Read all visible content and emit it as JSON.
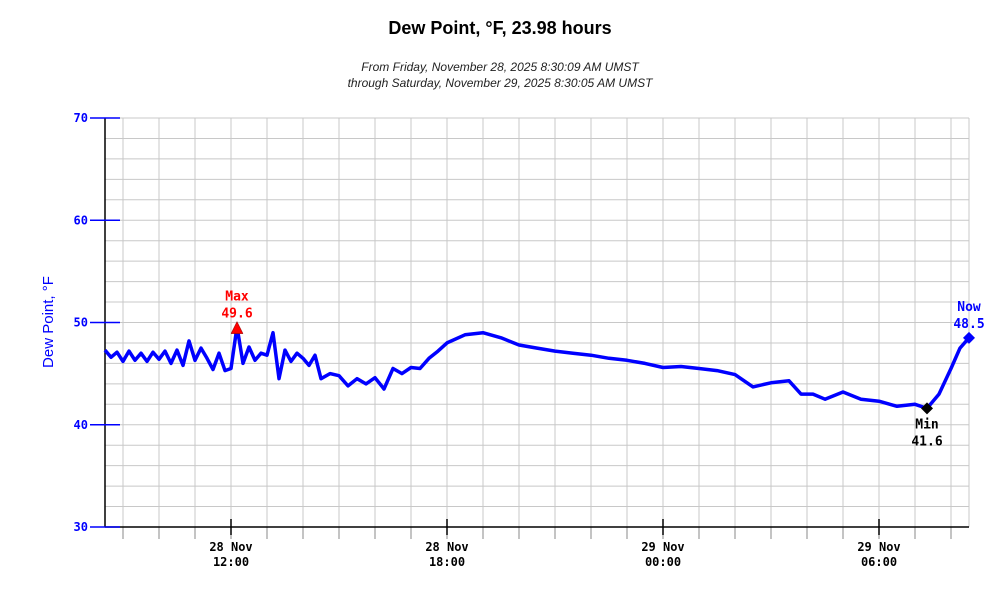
{
  "chart_data": {
    "type": "line",
    "title": "Dew Point, °F, 23.98 hours",
    "subtitle_line1": "From Friday, November 28, 2025 8:30:09 AM UMST",
    "subtitle_line2": "through Saturday, November 29, 2025 8:30:05 AM UMST",
    "ylabel": "Dew Point, °F",
    "xlabel": "",
    "ylim": [
      30,
      70
    ],
    "yticks": [
      "30",
      "40",
      "50",
      "60",
      "70"
    ],
    "xlim": [
      "2025-11-28 08:30",
      "2025-11-29 08:30"
    ],
    "xticks": [
      {
        "at": "2025-11-28 12:00",
        "line1": "28 Nov",
        "line2": "12:00"
      },
      {
        "at": "2025-11-28 18:00",
        "line1": "28 Nov",
        "line2": "18:00"
      },
      {
        "at": "2025-11-29 00:00",
        "line1": "29 Nov",
        "line2": "00:00"
      },
      {
        "at": "2025-11-29 06:00",
        "line1": "29 Nov",
        "line2": "06:00"
      }
    ],
    "grid": true,
    "line_color": "#0000ff",
    "series": [
      {
        "x": [
          "2025-11-28 08:30",
          "2025-11-28 08:40",
          "2025-11-28 08:50",
          "2025-11-28 09:00",
          "2025-11-28 09:10",
          "2025-11-28 09:20",
          "2025-11-28 09:30",
          "2025-11-28 09:40",
          "2025-11-28 09:50",
          "2025-11-28 10:00",
          "2025-11-28 10:10",
          "2025-11-28 10:20",
          "2025-11-28 10:30",
          "2025-11-28 10:40",
          "2025-11-28 10:50",
          "2025-11-28 11:00",
          "2025-11-28 11:10",
          "2025-11-28 11:20",
          "2025-11-28 11:30",
          "2025-11-28 11:40",
          "2025-11-28 11:50",
          "2025-11-28 12:00",
          "2025-11-28 12:10",
          "2025-11-28 12:20",
          "2025-11-28 12:30",
          "2025-11-28 12:40",
          "2025-11-28 12:50",
          "2025-11-28 13:00",
          "2025-11-28 13:10",
          "2025-11-28 13:20",
          "2025-11-28 13:30",
          "2025-11-28 13:40",
          "2025-11-28 13:50",
          "2025-11-28 14:00",
          "2025-11-28 14:10",
          "2025-11-28 14:20",
          "2025-11-28 14:30",
          "2025-11-28 14:45",
          "2025-11-28 15:00",
          "2025-11-28 15:15",
          "2025-11-28 15:30",
          "2025-11-28 15:45",
          "2025-11-28 16:00",
          "2025-11-28 16:15",
          "2025-11-28 16:30",
          "2025-11-28 16:45",
          "2025-11-28 17:00",
          "2025-11-28 17:15",
          "2025-11-28 17:30",
          "2025-11-28 17:45",
          "2025-11-28 18:00",
          "2025-11-28 18:30",
          "2025-11-28 19:00",
          "2025-11-28 19:30",
          "2025-11-28 20:00",
          "2025-11-28 20:30",
          "2025-11-28 21:00",
          "2025-11-28 21:30",
          "2025-11-28 22:00",
          "2025-11-28 22:30",
          "2025-11-28 23:00",
          "2025-11-28 23:30",
          "2025-11-29 00:00",
          "2025-11-29 00:30",
          "2025-11-29 01:00",
          "2025-11-29 01:30",
          "2025-11-29 02:00",
          "2025-11-29 02:30",
          "2025-11-29 03:00",
          "2025-11-29 03:30",
          "2025-11-29 03:50",
          "2025-11-29 04:10",
          "2025-11-29 04:30",
          "2025-11-29 05:00",
          "2025-11-29 05:30",
          "2025-11-29 06:00",
          "2025-11-29 06:30",
          "2025-11-29 07:00",
          "2025-11-29 07:20",
          "2025-11-29 07:40",
          "2025-11-29 08:00",
          "2025-11-29 08:15",
          "2025-11-29 08:30"
        ],
        "y": [
          47.3,
          46.6,
          47.1,
          46.2,
          47.2,
          46.3,
          47.0,
          46.2,
          47.1,
          46.4,
          47.2,
          46.0,
          47.3,
          45.8,
          48.2,
          46.3,
          47.5,
          46.5,
          45.4,
          47.0,
          45.3,
          45.5,
          49.6,
          46.0,
          47.6,
          46.3,
          47.0,
          46.8,
          49.0,
          44.5,
          47.3,
          46.2,
          47.0,
          46.5,
          45.8,
          46.8,
          44.5,
          45.0,
          44.8,
          43.8,
          44.5,
          44.0,
          44.6,
          43.5,
          45.5,
          45.0,
          45.6,
          45.5,
          46.5,
          47.2,
          48.0,
          48.8,
          49.0,
          48.5,
          47.8,
          47.5,
          47.2,
          47.0,
          46.8,
          46.5,
          46.3,
          46.0,
          45.6,
          45.7,
          45.5,
          45.3,
          44.9,
          43.7,
          44.1,
          44.3,
          43.0,
          43.0,
          42.5,
          43.2,
          42.5,
          42.3,
          41.8,
          42.0,
          41.6,
          43.0,
          45.5,
          47.5,
          48.5
        ]
      }
    ],
    "annotations": {
      "max": {
        "label": "Max",
        "value": "49.6",
        "at": "2025-11-28 12:10",
        "y": 49.6,
        "color": "#ff0000"
      },
      "min": {
        "label": "Min",
        "value": "41.6",
        "at": "2025-11-29 07:20",
        "y": 41.6,
        "color": "#000000"
      },
      "now": {
        "label": "Now",
        "value": "48.5",
        "at": "2025-11-29 08:30",
        "y": 48.5,
        "color": "#0000ff"
      }
    }
  }
}
